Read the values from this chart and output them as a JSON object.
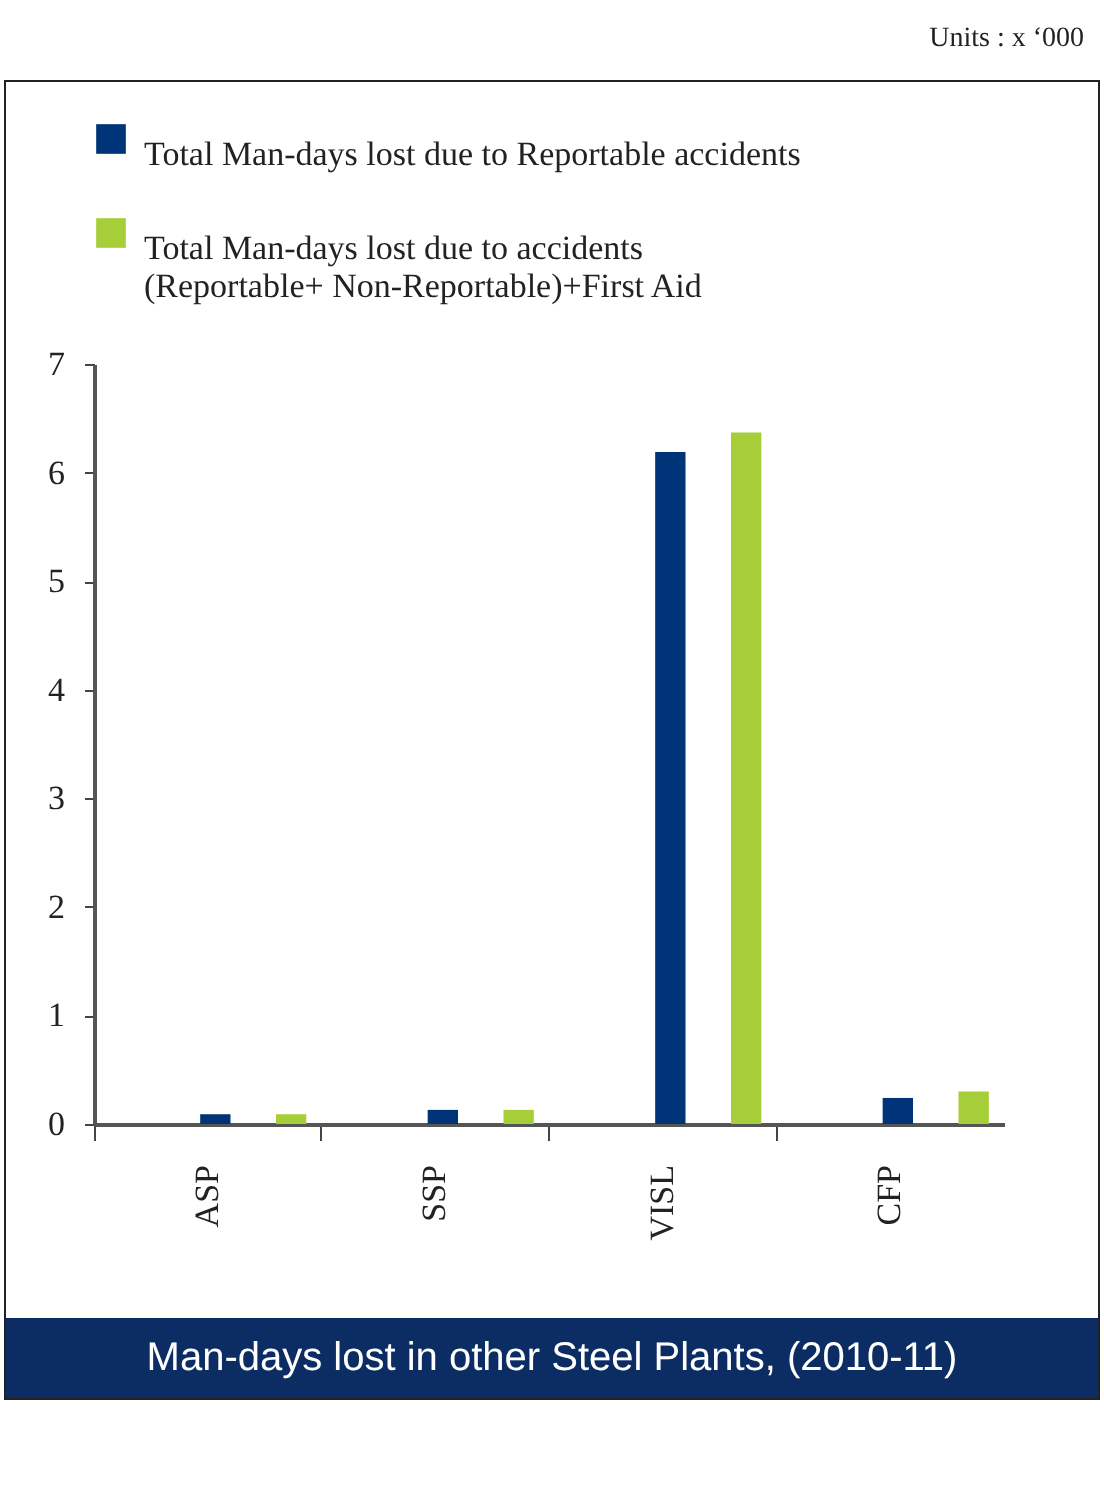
{
  "chart_data": {
    "type": "bar",
    "title": "Man-days lost in other Steel Plants, (2010-11)",
    "annotations": [
      "Units : x ‘000"
    ],
    "categories": [
      "ASP",
      "SSP",
      "VISL",
      "CFP"
    ],
    "series": [
      {
        "name": "Total Man-days lost due to Reportable accidents",
        "color": "#003478",
        "values": [
          0.09,
          0.13,
          6.19,
          0.24
        ]
      },
      {
        "name": "Total Man-days lost due to accidents (Reportable+ Non-Reportable)+First Aid",
        "color": "#a6ce39",
        "values": [
          0.09,
          0.13,
          6.37,
          0.3
        ]
      }
    ],
    "ylim": [
      0,
      7
    ],
    "yticks": [
      0,
      1,
      2,
      3,
      4,
      5,
      6,
      7
    ],
    "grid": false,
    "legend": "top"
  }
}
